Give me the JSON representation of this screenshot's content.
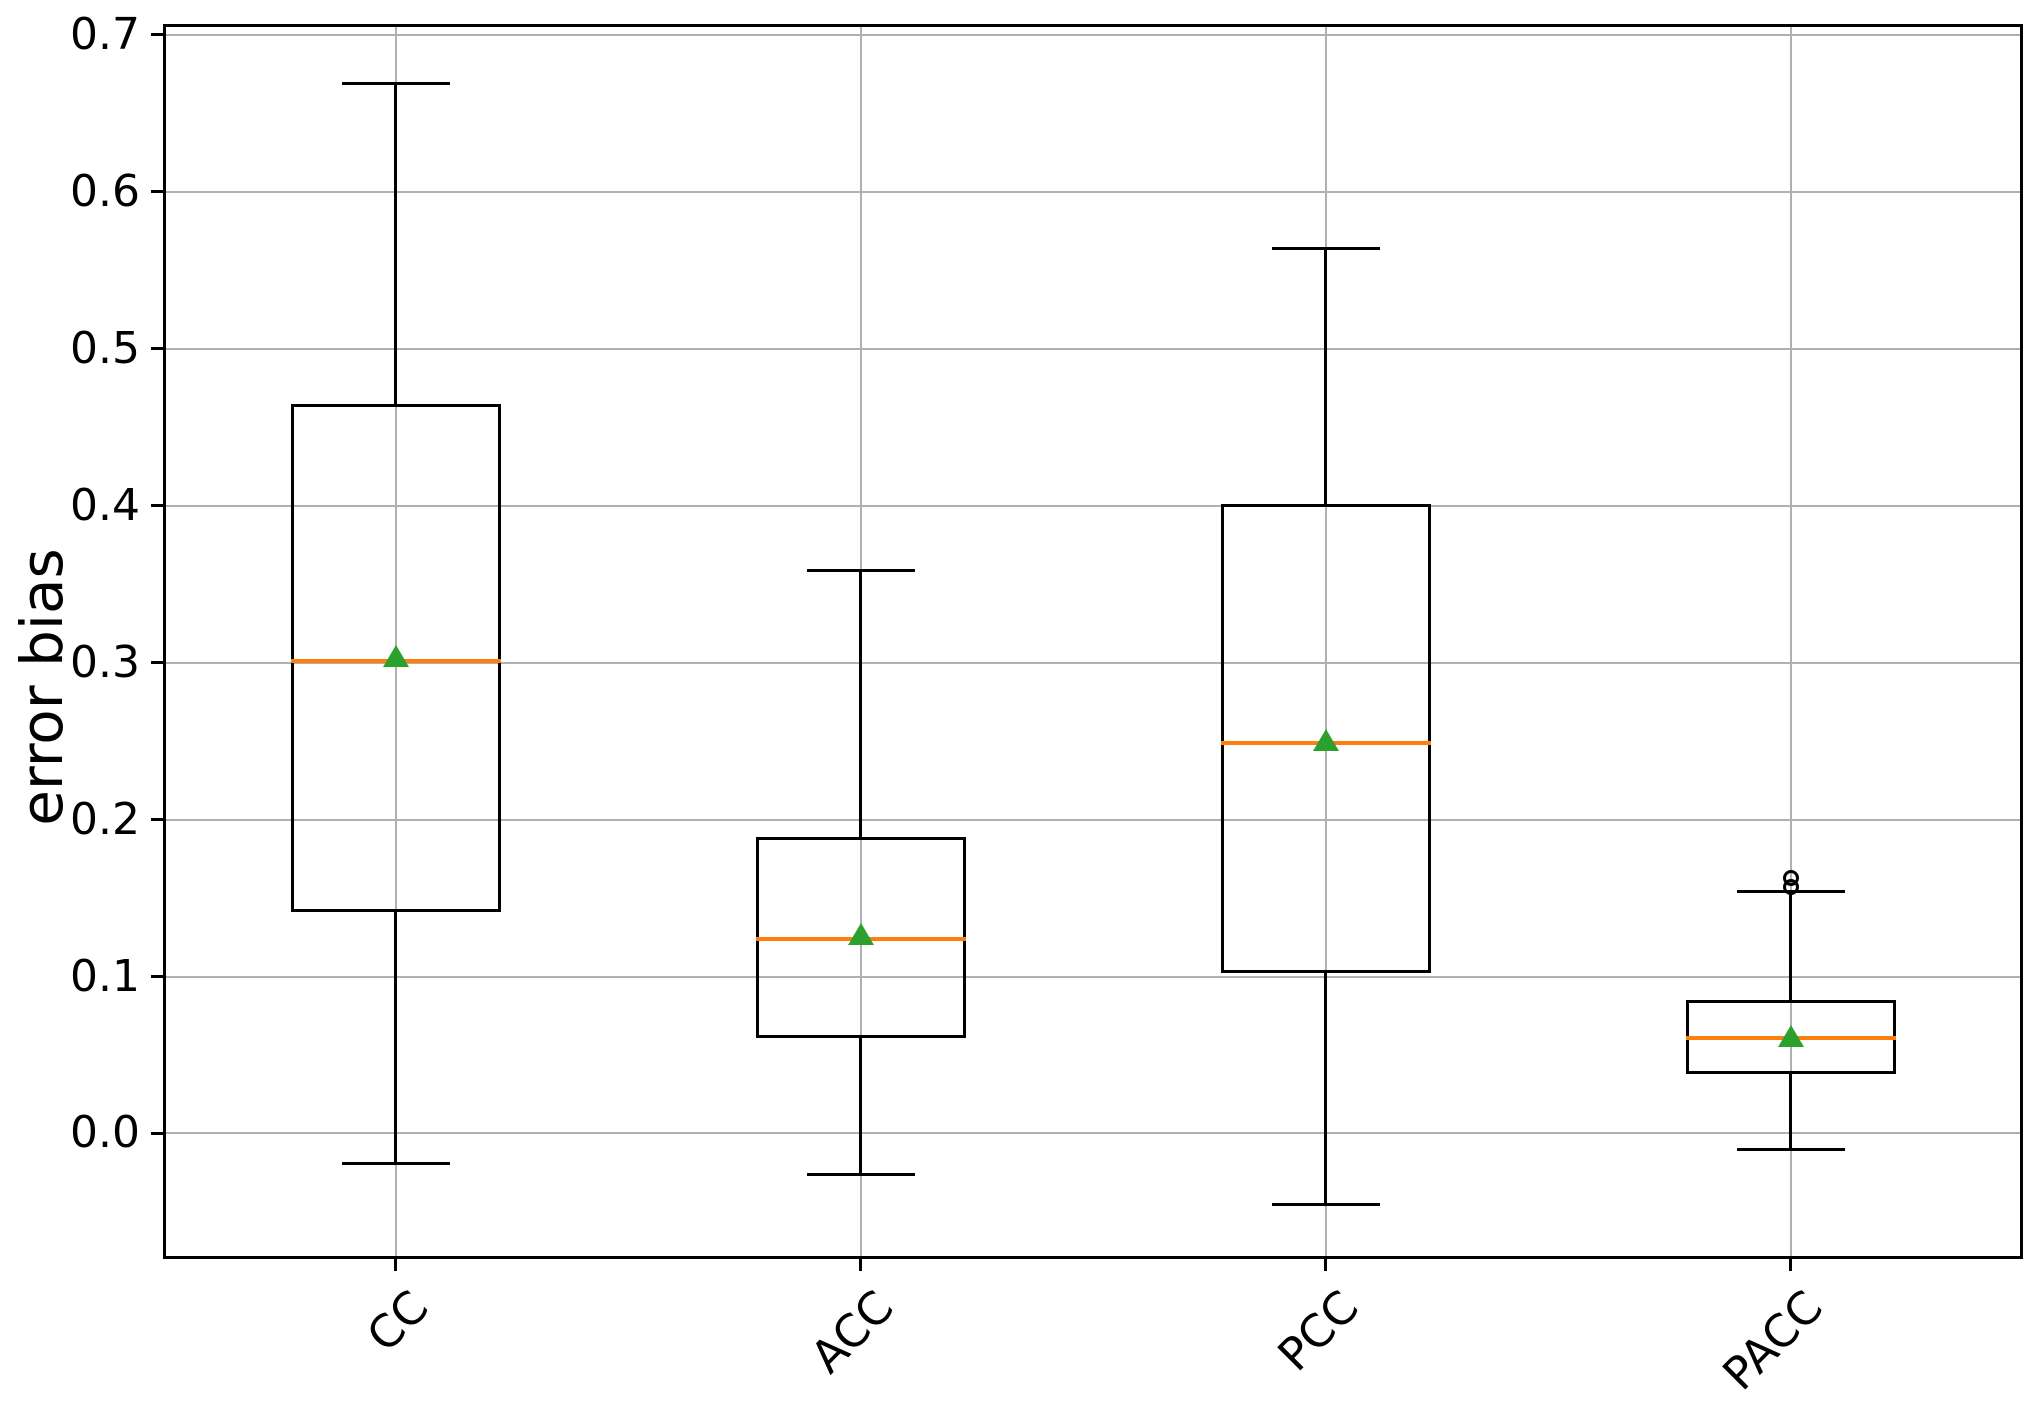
{
  "ylabel": "error bias",
  "chart_data": {
    "type": "box",
    "title": "",
    "xlabel": "",
    "ylabel": "error bias",
    "categories": [
      "CC",
      "ACC",
      "PCC",
      "PACC"
    ],
    "yticks": [
      0.0,
      0.1,
      0.2,
      0.3,
      0.4,
      0.5,
      0.6,
      0.7
    ],
    "ylim": [
      -0.08,
      0.707
    ],
    "grid": true,
    "legend_position": "none",
    "colors": {
      "median": "#ff7f0e",
      "mean_marker": "#2ca02c",
      "box_line": "#000000",
      "grid": "#b0b0b0"
    },
    "boxes": [
      {
        "label": "CC",
        "whisker_low": -0.019,
        "q1": 0.141,
        "median": 0.301,
        "q3": 0.465,
        "whisker_high": 0.669,
        "mean": 0.304,
        "outliers": []
      },
      {
        "label": "ACC",
        "whisker_low": -0.026,
        "q1": 0.061,
        "median": 0.124,
        "q3": 0.189,
        "whisker_high": 0.359,
        "mean": 0.127,
        "outliers": []
      },
      {
        "label": "PCC",
        "whisker_low": -0.045,
        "q1": 0.102,
        "median": 0.249,
        "q3": 0.401,
        "whisker_high": 0.564,
        "mean": 0.251,
        "outliers": []
      },
      {
        "label": "PACC",
        "whisker_low": -0.01,
        "q1": 0.038,
        "median": 0.061,
        "q3": 0.085,
        "whisker_high": 0.154,
        "mean": 0.062,
        "outliers": [
          0.157,
          0.163
        ]
      }
    ]
  }
}
